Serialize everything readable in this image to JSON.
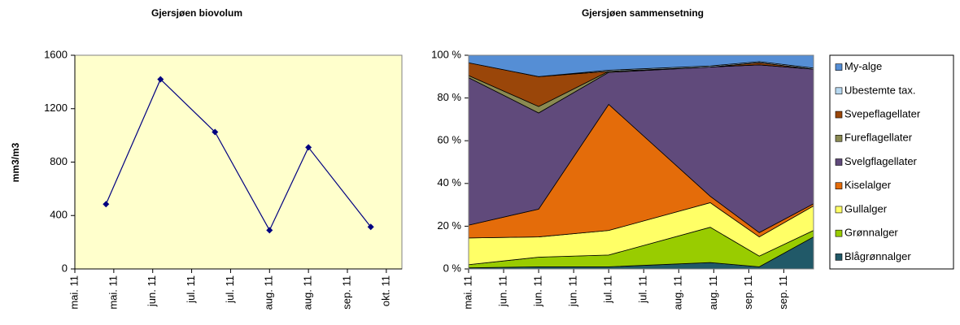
{
  "chart_data": [
    {
      "type": "line",
      "title": "Gjersjøen biovolum",
      "y_label": "mm3/m3",
      "x": [
        0.8,
        2.2,
        3.6,
        5.0,
        6.0,
        7.6
      ],
      "series": [
        {
          "name": "Biovolum",
          "color": "#000080",
          "values": [
            485,
            1420,
            1025,
            290,
            910,
            315
          ]
        }
      ],
      "xlim": [
        0,
        8.4
      ],
      "xticks": [
        {
          "value": 0,
          "label": "mai. 11"
        },
        {
          "value": 1,
          "label": "mai. 11"
        },
        {
          "value": 2,
          "label": "jun. 11"
        },
        {
          "value": 3,
          "label": "jul. 11"
        },
        {
          "value": 4,
          "label": "jul. 11"
        },
        {
          "value": 5,
          "label": "aug. 11"
        },
        {
          "value": 6,
          "label": "aug. 11"
        },
        {
          "value": 7,
          "label": "sep. 11"
        },
        {
          "value": 8,
          "label": "okt. 11"
        }
      ],
      "ylim": [
        0,
        1600
      ],
      "yticks": [
        0,
        400,
        800,
        1200,
        1600
      ],
      "background": "#ffffcc"
    },
    {
      "type": "area",
      "title": "Gjersjøen sammensetning",
      "stacked": true,
      "x": [
        0,
        2,
        4,
        6.9,
        8.3,
        9.85
      ],
      "series": [
        {
          "name": "Blågrønnalger",
          "color": "#215968",
          "values": [
            0.5,
            1,
            1,
            3,
            1,
            15
          ]
        },
        {
          "name": "Grønnalger",
          "color": "#99cc00",
          "values": [
            1.5,
            4.5,
            5.5,
            16.5,
            5,
            3
          ]
        },
        {
          "name": "Gullalger",
          "color": "#ffff66",
          "values": [
            12.5,
            9.5,
            11.5,
            11.5,
            9,
            11.5
          ]
        },
        {
          "name": "Kiselalger",
          "color": "#e46c0a",
          "values": [
            6,
            13,
            59,
            3,
            2,
            1
          ]
        },
        {
          "name": "Svelgflagellater",
          "color": "#604a7b",
          "values": [
            69,
            45,
            15,
            60.5,
            78.5,
            63
          ]
        },
        {
          "name": "Fureflagellater",
          "color": "#8a8a52",
          "values": [
            1,
            3,
            0.5,
            0,
            0,
            0
          ]
        },
        {
          "name": "Svepeflagellater",
          "color": "#9a4609",
          "values": [
            6,
            14,
            0,
            0,
            1,
            0
          ]
        },
        {
          "name": "Ubestemte tax.",
          "color": "#b7d8f0",
          "values": [
            0,
            0,
            0.5,
            0.5,
            0.5,
            0.5
          ]
        },
        {
          "name": "My-alge",
          "color": "#558ed5",
          "values": [
            3.5,
            10,
            7,
            5,
            3,
            6
          ]
        }
      ],
      "xlim": [
        0,
        9.85
      ],
      "xticks": [
        {
          "value": 0,
          "label": "mai. 11"
        },
        {
          "value": 1,
          "label": "jun. 11"
        },
        {
          "value": 2,
          "label": "jun. 11"
        },
        {
          "value": 3,
          "label": "jun. 11"
        },
        {
          "value": 4,
          "label": "jul. 11"
        },
        {
          "value": 5,
          "label": "jul. 11"
        },
        {
          "value": 6,
          "label": "aug. 11"
        },
        {
          "value": 7,
          "label": "aug. 11"
        },
        {
          "value": 8,
          "label": "sep. 11"
        },
        {
          "value": 9,
          "label": "sep. 11"
        }
      ],
      "ylim": [
        0,
        100
      ],
      "yticks": [
        {
          "value": 0,
          "label": "0 %"
        },
        {
          "value": 20,
          "label": "20 %"
        },
        {
          "value": 40,
          "label": "40 %"
        },
        {
          "value": 60,
          "label": "60 %"
        },
        {
          "value": 80,
          "label": "80 %"
        },
        {
          "value": 100,
          "label": "100 %"
        }
      ],
      "legend": "right"
    }
  ]
}
